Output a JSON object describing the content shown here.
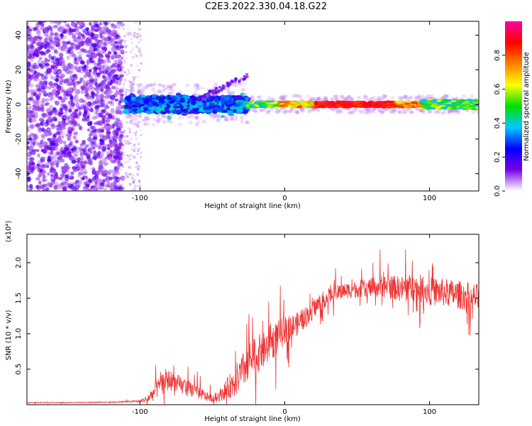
{
  "title": "C2E3.2022.330.04.18.G22",
  "chart_data": [
    {
      "type": "heatmap",
      "xlabel": "Height of straight line (km)",
      "ylabel": "Frequency (Hz)",
      "xlim": [
        -178,
        134
      ],
      "ylim": [
        -50,
        48
      ],
      "xticks": [
        -100,
        0,
        100
      ],
      "xtick_labels": [
        "-100",
        "0",
        "100"
      ],
      "yticks": [
        -40,
        -20,
        0,
        20,
        40
      ],
      "ytick_labels": [
        "-40",
        "-20",
        "0",
        "20",
        "40"
      ],
      "colorbar": {
        "label": "Normalized spectral amplitude",
        "range": [
          0.0,
          1.0
        ],
        "ticks": [
          0.0,
          0.2,
          0.4,
          0.6,
          0.8
        ],
        "tick_labels": [
          "0.0",
          "0.2",
          "0.4",
          "0.6",
          "0.8"
        ],
        "colors": [
          "#ffffff",
          "#7a00e6",
          "#0000ff",
          "#00c8ff",
          "#00e000",
          "#ffff00",
          "#ff7f00",
          "#ff0000",
          "#ff00a0"
        ]
      },
      "regions": [
        {
          "x": [
            -178,
            -112
          ],
          "freq": [
            -50,
            48
          ],
          "amplitude": 0.15,
          "pattern": "scattered noise"
        },
        {
          "x": [
            -112,
            -100
          ],
          "freq": [
            -50,
            48
          ],
          "amplitude": 0.05,
          "pattern": "sparse noise"
        },
        {
          "x": [
            -110,
            -25
          ],
          "freq": [
            -6,
            6
          ],
          "amplitude": 0.35,
          "pattern": "band"
        },
        {
          "x": [
            -25,
            134
          ],
          "freq": [
            -2,
            2
          ],
          "amplitude": 0.9,
          "pattern": "narrow band"
        }
      ]
    },
    {
      "type": "line",
      "xlabel": "Height of straight line (km)",
      "ylabel": "SNR (10 * v/v)",
      "y_multiplier": "(x10⁴)",
      "xlim": [
        -178,
        134
      ],
      "ylim": [
        0,
        24000
      ],
      "xticks": [
        -100,
        0,
        100
      ],
      "xtick_labels": [
        "-100",
        "0",
        "100"
      ],
      "yticks": [
        5000,
        10000,
        15000,
        20000
      ],
      "ytick_labels": [
        "0.5",
        "1.0",
        "1.5",
        "2.0"
      ],
      "color": "#ee3333",
      "series": [
        {
          "x": [
            -178,
            -150,
            -120,
            -100,
            -95,
            -90,
            -85,
            -80,
            -75,
            -70,
            -65,
            -60,
            -55,
            -50,
            -45,
            -40,
            -35,
            -30,
            -25,
            -20,
            -15,
            -10,
            -5,
            0,
            5,
            10,
            15,
            20,
            25,
            30,
            40,
            50,
            60,
            70,
            80,
            90,
            100,
            110,
            120,
            134
          ],
          "y": [
            300,
            300,
            350,
            500,
            800,
            1800,
            2800,
            3500,
            3000,
            2500,
            2200,
            1800,
            1200,
            900,
            1300,
            2200,
            3200,
            4300,
            6200,
            7000,
            7500,
            8500,
            9500,
            10500,
            11000,
            11500,
            12500,
            13500,
            14500,
            15200,
            16000,
            16300,
            16500,
            16700,
            16300,
            16500,
            16000,
            15800,
            15500,
            15000
          ],
          "noise_amplitude": [
            50,
            50,
            60,
            150,
            600,
            1200,
            1400,
            1500,
            1400,
            1200,
            1100,
            1000,
            700,
            500,
            800,
            1500,
            2200,
            2500,
            2800,
            2800,
            2600,
            2500,
            2300,
            2000,
            1800,
            1600,
            1500,
            1400,
            1300,
            1200,
            1100,
            1200,
            1400,
            1600,
            1800,
            2000,
            2000,
            2000,
            2000,
            2000
          ]
        }
      ]
    }
  ]
}
